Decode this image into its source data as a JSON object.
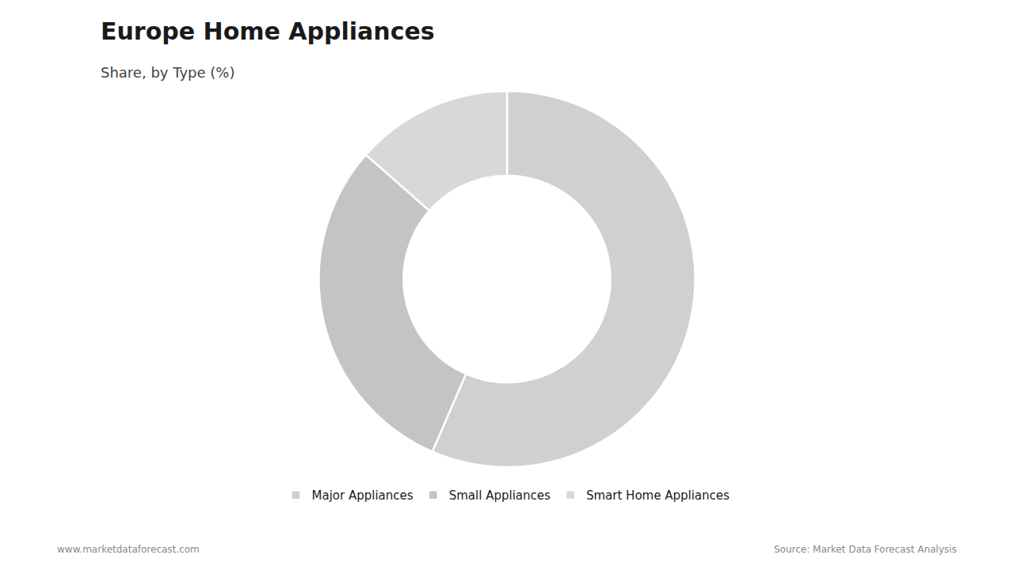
{
  "chart_data": {
    "type": "donut",
    "title": "Europe Home Appliances",
    "subtitle": "Share, by Type (%)",
    "categories": [
      "Major Appliances",
      "Small Appliances",
      "Smart Home Appliances"
    ],
    "values": [
      56.5,
      30.0,
      13.5
    ],
    "colors": [
      "#d0d0d0",
      "#c4c4c4",
      "#d8d8d8"
    ],
    "legend": "bottom",
    "annotations": [
      "www.marketdataforecast.com",
      "Source: Market Data Forecast Analysis"
    ]
  }
}
